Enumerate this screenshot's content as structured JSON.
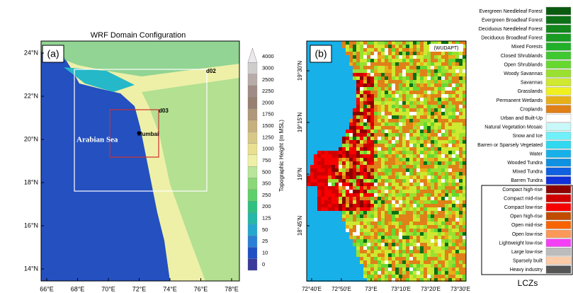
{
  "panel_a": {
    "title": "WRF Domain Configuration",
    "label": "(a)",
    "yticks": [
      "24°N",
      "22°N",
      "20°N",
      "18°N",
      "16°N",
      "14°N"
    ],
    "xticks": [
      "66°E",
      "68°E",
      "70°E",
      "72°E",
      "74°E",
      "76°E",
      "78°E"
    ],
    "domains": [
      "d02",
      "d03"
    ],
    "place": "Mumbai",
    "sea": "Arabian Sea",
    "colorbar": {
      "label": "Topographic Height (m MSL)",
      "ticks": [
        0,
        10,
        25,
        50,
        125,
        200,
        250,
        350,
        500,
        750,
        1000,
        1250,
        1500,
        1750,
        2000,
        2250,
        2500,
        3000,
        4000
      ],
      "colors": [
        "#3a3a9c",
        "#1f4fc4",
        "#2a80d6",
        "#25a8cf",
        "#25b8a8",
        "#30c080",
        "#5ed06a",
        "#8ad878",
        "#b8e69a",
        "#eef0a8",
        "#e8e090",
        "#d8c888",
        "#c8b07e",
        "#b09878",
        "#988070",
        "#a08c84",
        "#b8aca8",
        "#d0cccc",
        "#ece8ec"
      ]
    }
  },
  "panel_b": {
    "label": "(b)",
    "source": "(WUDAPT)",
    "yticks": [
      "19°30'N",
      "19°15'N",
      "19°N",
      "18°45'N"
    ],
    "xticks": [
      "72°40'E",
      "72°50'E",
      "73°E",
      "73°10'E",
      "73°20'E",
      "73°30'E"
    ]
  },
  "legend": {
    "landuse": [
      {
        "name": "Evergreen Needleleaf Forest",
        "color": "#0a5a10"
      },
      {
        "name": "Evergreen Broadleaf Forest",
        "color": "#0c7016"
      },
      {
        "name": "Deciduous Needleleaf Forest",
        "color": "#13861c"
      },
      {
        "name": "Deciduous Broadleaf Forest",
        "color": "#1a9c22"
      },
      {
        "name": "Mixed Forests",
        "color": "#22b02a"
      },
      {
        "name": "Closed Shrublands",
        "color": "#40c830"
      },
      {
        "name": "Open Shrublands",
        "color": "#66d830"
      },
      {
        "name": "Woody Savannas",
        "color": "#9ae030"
      },
      {
        "name": "Savannas",
        "color": "#cfe830"
      },
      {
        "name": "Grasslands",
        "color": "#f0f020"
      },
      {
        "name": "Permanent Wetlands",
        "color": "#e8b018"
      },
      {
        "name": "Croplands",
        "color": "#e08018"
      },
      {
        "name": "Urban and Built-Up",
        "color": "#ffffff"
      },
      {
        "name": "Natural Vegetation Mosaic",
        "color": "#c8f8f8"
      },
      {
        "name": "Snow and Ice",
        "color": "#70f0f8"
      },
      {
        "name": "Barren or Sparsely Vegetated",
        "color": "#30d8f0"
      },
      {
        "name": "Water",
        "color": "#18b0e8"
      },
      {
        "name": "Wooded Tundra",
        "color": "#1090e0"
      },
      {
        "name": "Mixed Tundra",
        "color": "#1060e0"
      },
      {
        "name": "Barren Tundra",
        "color": "#1030d8"
      }
    ],
    "lcz": [
      {
        "name": "Compact high-rise",
        "color": "#8c0000"
      },
      {
        "name": "Compact mid-rise",
        "color": "#d00000"
      },
      {
        "name": "Compact low-rise",
        "color": "#f80000"
      },
      {
        "name": "Open high-rise",
        "color": "#c04c00"
      },
      {
        "name": "Open mid-rise",
        "color": "#f86400"
      },
      {
        "name": "Open low-rise",
        "color": "#fc9858"
      },
      {
        "name": "Lightweight low-rise",
        "color": "#f440f4"
      },
      {
        "name": "Large low-rise",
        "color": "#bcbcbc"
      },
      {
        "name": "Sparsely built",
        "color": "#fccca8"
      },
      {
        "name": "Heavy industry",
        "color": "#555555"
      }
    ],
    "lcz_title": "LCZs"
  }
}
